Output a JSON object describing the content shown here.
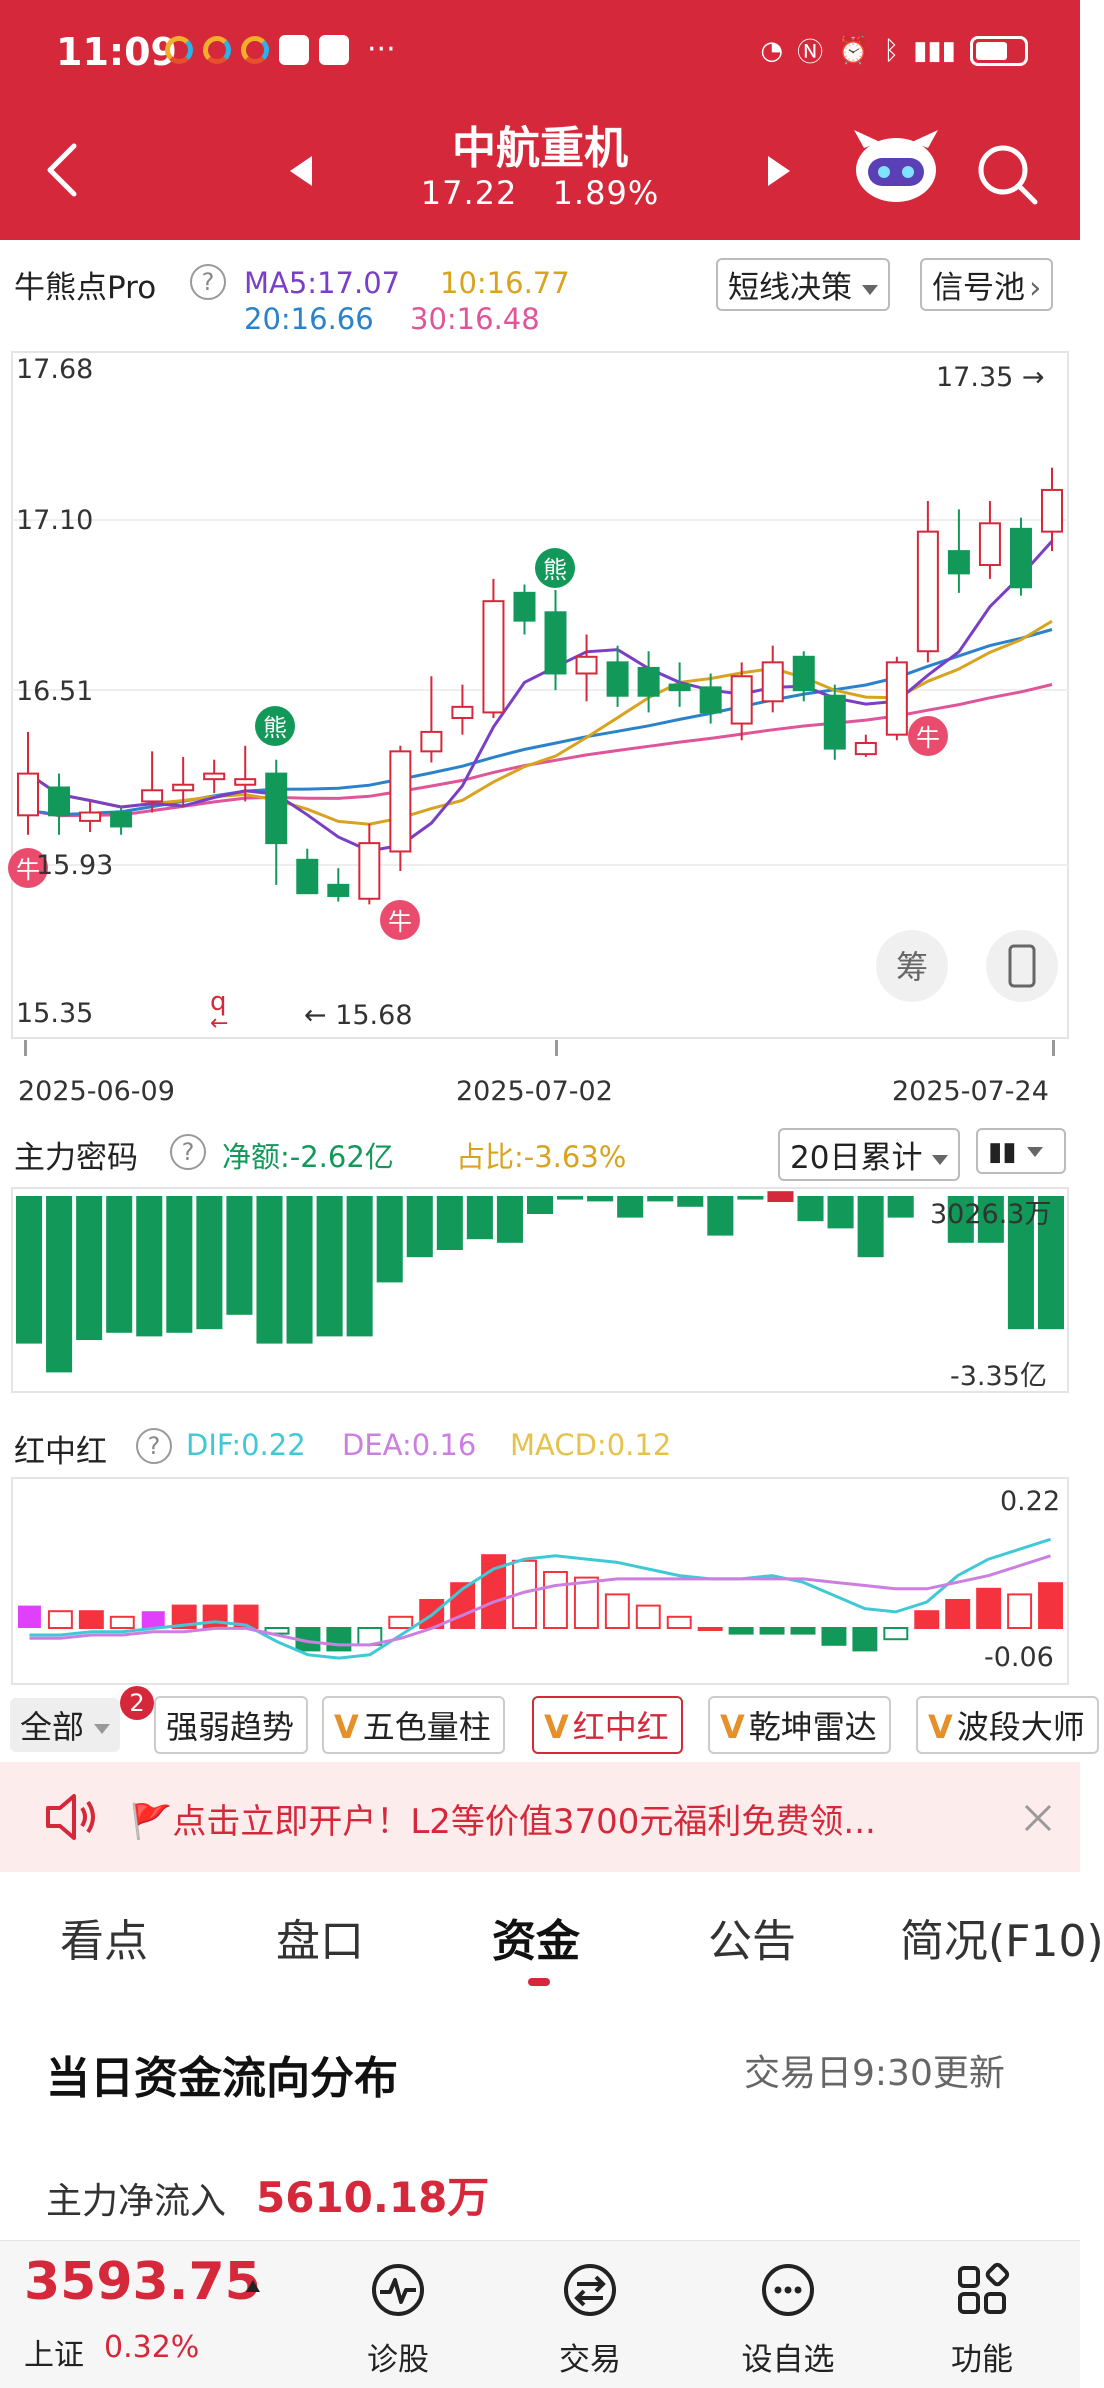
{
  "status": {
    "time": "11:09",
    "more": "···"
  },
  "header": {
    "title": "中航重机",
    "price": "17.22",
    "change_pct": "1.89%"
  },
  "kline": {
    "indicator_name": "牛熊点Pro",
    "ma5": "MA5:17.07",
    "ma10": "10:16.77",
    "ma20": "20:16.66",
    "ma30": "30:16.48",
    "decision_btn": "短线决策",
    "signal_btn": "信号池",
    "y_labels": [
      "17.68",
      "17.10",
      "16.51",
      "15.93",
      "15.35"
    ],
    "last_price_tag": "17.35 →",
    "low_tag": "← 15.68",
    "date_labels": [
      "2025-06-09",
      "2025-07-02",
      "2025-07-24"
    ],
    "bear_label": "熊",
    "bull_label": "牛",
    "chip_btn": "筹",
    "colors": {
      "up": "#d5283a",
      "down": "#12995a",
      "ma5": "#7a3fc4",
      "ma10": "#d8a420",
      "ma20": "#2a82cc",
      "ma30": "#e0549a"
    }
  },
  "capital": {
    "title": "主力密码",
    "net": "净额:-2.62亿",
    "ratio": "占比:-3.63%",
    "period_btn": "20日累计",
    "top_label": "3026.3万",
    "bottom_label": "-3.35亿"
  },
  "macd": {
    "title": "红中红",
    "dif": "DIF:0.22",
    "dea": "DEA:0.16",
    "macd": "MACD:0.12",
    "top_label": "0.22",
    "bottom_label": "-0.06"
  },
  "indicator_tabs": {
    "all": "全部",
    "badge": "2",
    "items": [
      "强弱趋势",
      "五色量柱",
      "红中红",
      "乾坤雷达",
      "波段大师"
    ]
  },
  "banner": {
    "text": "🚩点击立即开户！L2等价值3700元福利免费领..."
  },
  "sub_tabs": [
    "看点",
    "盘口",
    "资金",
    "公告",
    "简况(F10)"
  ],
  "fund_flow": {
    "title": "当日资金流向分布",
    "update": "交易日9:30更新",
    "main_label": "主力净流入",
    "main_value": "5610.18万"
  },
  "footer": {
    "index_value": "3593.75",
    "index_name": "上证",
    "index_change": "0.32%",
    "items": [
      "诊股",
      "交易",
      "设自选",
      "功能"
    ]
  }
}
